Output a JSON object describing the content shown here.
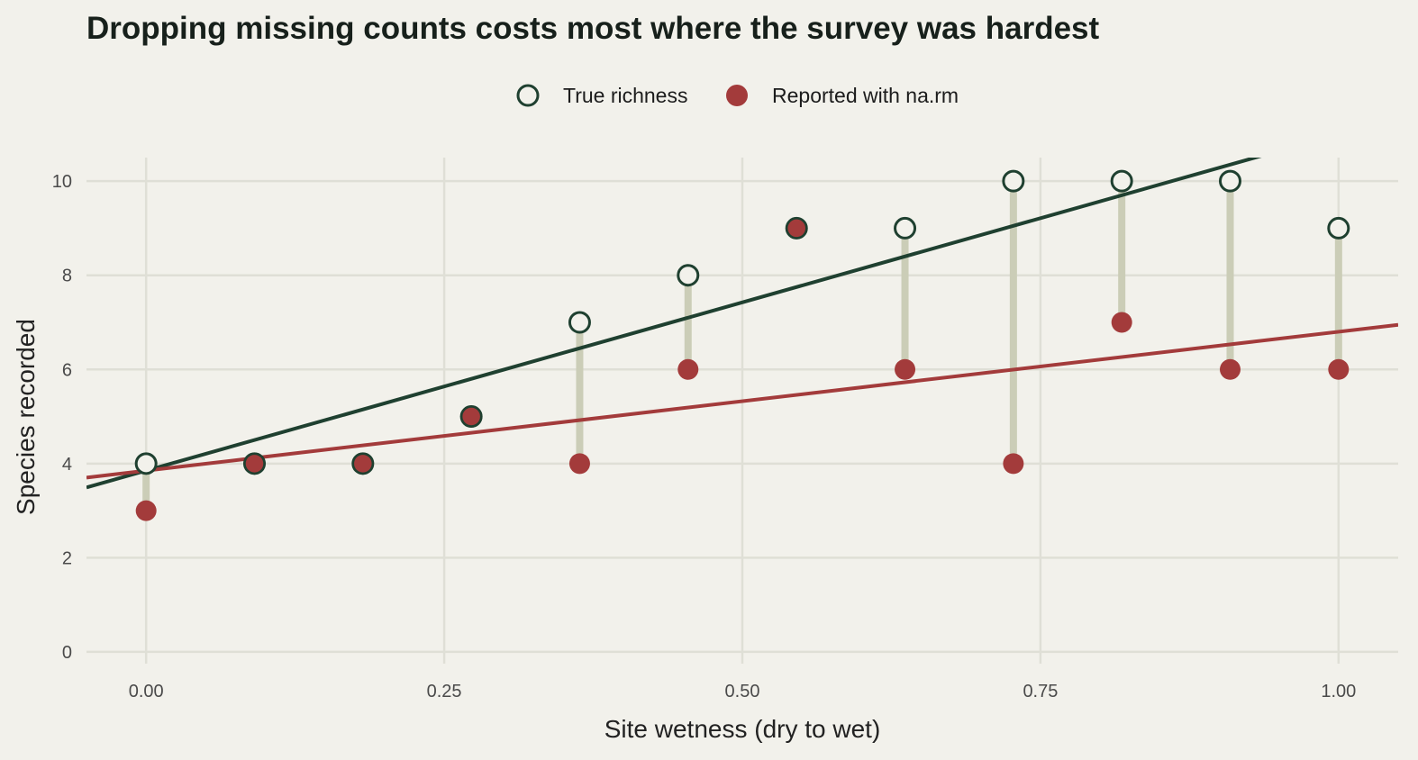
{
  "chart_data": {
    "type": "scatter",
    "title": "Dropping missing counts costs most where the survey was hardest",
    "xlabel": "Site wetness (dry to wet)",
    "ylabel": "Species recorded",
    "xlim": [
      -0.05,
      1.05
    ],
    "ylim": [
      -0.25,
      10.5
    ],
    "x_ticks": [
      0,
      0.25,
      0.5,
      0.75,
      1
    ],
    "x_tick_labels": [
      "0.00",
      "0.25",
      "0.50",
      "0.75",
      "1.00"
    ],
    "y_ticks": [
      0,
      2,
      4,
      6,
      8,
      10
    ],
    "y_tick_labels": [
      "0",
      "2",
      "4",
      "6",
      "8",
      "10"
    ],
    "grid": true,
    "legend_position": "top-center",
    "x": [
      0,
      0.0909,
      0.1818,
      0.2727,
      0.3636,
      0.4545,
      0.5455,
      0.6364,
      0.7273,
      0.8182,
      0.9091,
      1.0
    ],
    "series": [
      {
        "name": "True richness",
        "color": "#1f4030",
        "marker": "open-circle",
        "values": [
          4,
          4,
          4,
          5,
          7,
          8,
          9,
          9,
          10,
          10,
          10,
          9
        ],
        "trend_line": {
          "intercept": 3.85,
          "slope": 7.15
        }
      },
      {
        "name": "Reported with na.rm",
        "color": "#a33b3b",
        "marker": "filled-circle",
        "values": [
          3,
          4,
          4,
          5,
          4,
          6,
          9,
          6,
          4,
          7,
          6,
          6
        ],
        "trend_line": {
          "intercept": 3.85,
          "slope": 2.95
        }
      }
    ],
    "gap_segment_color": "#cbcdb7"
  }
}
